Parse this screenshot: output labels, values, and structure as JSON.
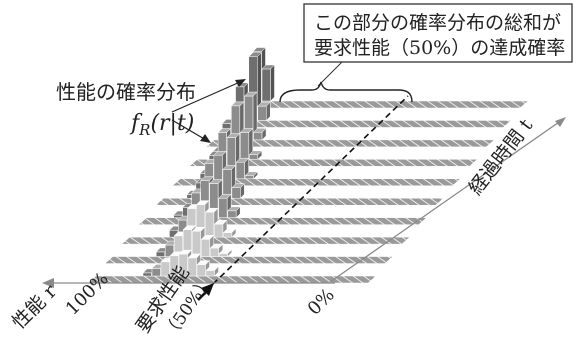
{
  "callout_line1": "この部分の確率分布の総和が",
  "callout_line2": "要求性能（50%）の達成確率",
  "distribution_label": "性能の確率分布",
  "function_label": "f_R(r|t)",
  "time_axis_label": "経過時間 t",
  "performance_axis_label": "性能 r",
  "performance_100": "100%",
  "performance_0": "0%",
  "requirement_label": "要求性能",
  "requirement_value": "（50%）",
  "colors": {
    "bar_dark": "#6f6f6f",
    "bar_mid": "#8c8c8c",
    "bar_light": "#c9c9c9",
    "axis_gray": "#8a8a8a"
  }
}
